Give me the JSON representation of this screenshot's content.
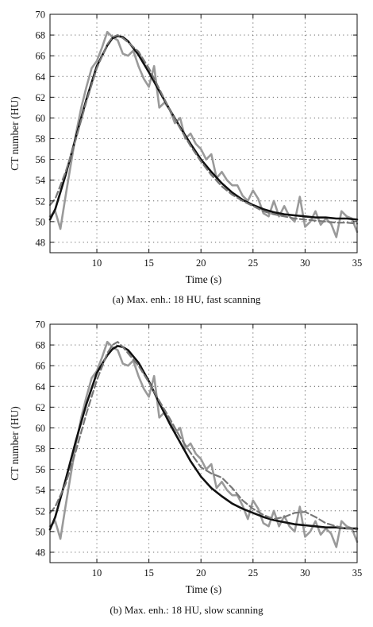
{
  "colors": {
    "noisy": "#9a9a9a",
    "fit": "#111111",
    "dashed": "#777777",
    "grid": "#555555"
  },
  "chart_data": [
    {
      "type": "line",
      "caption": "(a)  Max. enh.: 18 HU, fast scanning",
      "xlabel": "Time (s)",
      "ylabel": "CT number (HU)",
      "xlim": [
        5.5,
        35
      ],
      "ylim": [
        47,
        70
      ],
      "xticks": [
        10,
        15,
        20,
        25,
        30,
        35
      ],
      "yticks": [
        48,
        50,
        52,
        54,
        56,
        58,
        60,
        62,
        64,
        66,
        68,
        70
      ],
      "grid": true,
      "series": [
        {
          "style": "noisy",
          "x": [
            5.5,
            6,
            6.5,
            7,
            7.5,
            8,
            8.5,
            9,
            9.5,
            10,
            10.5,
            11,
            11.5,
            12,
            12.5,
            13,
            13.5,
            14,
            14.5,
            15,
            15.5,
            16,
            16.5,
            17,
            17.5,
            18,
            18.5,
            19,
            19.5,
            20,
            20.5,
            21,
            21.5,
            22,
            22.5,
            23,
            23.5,
            24,
            24.5,
            25,
            25.5,
            26,
            26.5,
            27,
            27.5,
            28,
            28.5,
            29,
            29.5,
            30,
            30.5,
            31,
            31.5,
            32,
            32.5,
            33,
            33.5,
            34,
            34.5,
            35
          ],
          "y": [
            50.5,
            51.0,
            49.3,
            52.5,
            55.5,
            58.5,
            61.0,
            63.0,
            64.8,
            65.5,
            66.8,
            68.3,
            67.8,
            67.5,
            66.2,
            66.0,
            66.5,
            65.0,
            63.8,
            63.0,
            65.0,
            61.0,
            61.5,
            60.8,
            59.5,
            60.0,
            58.0,
            58.5,
            57.5,
            57.0,
            56.0,
            56.5,
            54.2,
            54.8,
            54.0,
            53.5,
            53.5,
            52.5,
            52.0,
            53.0,
            52.2,
            50.8,
            50.5,
            52.0,
            50.5,
            51.5,
            50.5,
            50.0,
            52.4,
            49.5,
            50.0,
            51.0,
            49.7,
            50.3,
            49.8,
            48.5,
            51.0,
            50.5,
            50.3,
            49.0
          ]
        },
        {
          "style": "fit",
          "x": [
            5.5,
            6,
            7,
            8,
            9,
            10,
            11,
            11.5,
            12,
            12.5,
            13,
            14,
            15,
            16,
            17,
            18,
            19,
            20,
            21,
            22,
            23,
            24,
            25,
            26,
            27,
            28,
            29,
            30,
            31,
            32,
            33,
            34,
            35
          ],
          "y": [
            50.2,
            51.2,
            54.5,
            58.2,
            61.8,
            65.0,
            67.0,
            67.7,
            67.9,
            67.8,
            67.4,
            66.1,
            64.4,
            62.6,
            60.8,
            59.1,
            57.5,
            56.0,
            54.8,
            53.7,
            52.8,
            52.1,
            51.6,
            51.2,
            50.9,
            50.7,
            50.6,
            50.5,
            50.4,
            50.4,
            50.3,
            50.3,
            50.2
          ]
        },
        {
          "style": "dashed",
          "x": [
            5.5,
            6,
            7,
            8,
            9,
            10,
            11,
            11.5,
            12,
            12.5,
            13,
            14,
            15,
            16,
            17,
            18,
            19,
            20,
            21,
            22,
            23,
            24,
            25,
            26,
            27,
            28,
            29,
            30,
            31,
            32,
            33,
            34,
            35
          ],
          "y": [
            51.6,
            52.2,
            54.8,
            58.0,
            61.6,
            64.8,
            67.1,
            67.8,
            68.0,
            67.7,
            67.3,
            66.4,
            64.8,
            62.8,
            60.8,
            59.0,
            57.3,
            55.8,
            54.5,
            53.4,
            52.6,
            52.0,
            51.5,
            51.0,
            50.7,
            50.5,
            50.3,
            50.2,
            50.1,
            50.0,
            49.9,
            49.9,
            49.8
          ]
        }
      ]
    },
    {
      "type": "line",
      "caption": "(b)  Max. enh.: 18 HU, slow scanning",
      "xlabel": "Time (s)",
      "ylabel": "CT number (HU)",
      "xlim": [
        5.5,
        35
      ],
      "ylim": [
        47,
        70
      ],
      "xticks": [
        10,
        15,
        20,
        25,
        30,
        35
      ],
      "yticks": [
        48,
        50,
        52,
        54,
        56,
        58,
        60,
        62,
        64,
        66,
        68,
        70
      ],
      "grid": true,
      "series": [
        {
          "style": "noisy",
          "x": [
            5.5,
            6,
            6.5,
            7,
            7.5,
            8,
            8.5,
            9,
            9.5,
            10,
            10.5,
            11,
            11.5,
            12,
            12.5,
            13,
            13.5,
            14,
            14.5,
            15,
            15.5,
            16,
            16.5,
            17,
            17.5,
            18,
            18.5,
            19,
            19.5,
            20,
            20.5,
            21,
            21.5,
            22,
            22.5,
            23,
            23.5,
            24,
            24.5,
            25,
            25.5,
            26,
            26.5,
            27,
            27.5,
            28,
            28.5,
            29,
            29.5,
            30,
            30.5,
            31,
            31.5,
            32,
            32.5,
            33,
            33.5,
            34,
            34.5,
            35
          ],
          "y": [
            50.5,
            51.0,
            49.3,
            52.5,
            55.5,
            58.5,
            61.0,
            63.0,
            64.8,
            65.5,
            66.8,
            68.3,
            67.8,
            67.5,
            66.2,
            66.0,
            66.5,
            65.0,
            63.8,
            63.0,
            65.0,
            61.0,
            61.5,
            60.8,
            59.5,
            60.0,
            58.0,
            58.5,
            57.5,
            57.0,
            56.0,
            56.5,
            54.2,
            54.8,
            54.0,
            53.5,
            53.5,
            52.5,
            51.2,
            53.0,
            52.2,
            50.8,
            50.5,
            52.0,
            50.5,
            51.5,
            50.5,
            50.0,
            52.4,
            49.5,
            50.0,
            51.0,
            49.7,
            50.3,
            49.8,
            48.5,
            51.0,
            50.5,
            50.3,
            49.0
          ]
        },
        {
          "style": "fit",
          "x": [
            5.5,
            6,
            7,
            8,
            9,
            10,
            11,
            11.5,
            12,
            12.5,
            13,
            14,
            15,
            16,
            17,
            18,
            19,
            20,
            21,
            22,
            23,
            24,
            25,
            26,
            27,
            28,
            29,
            30,
            31,
            32,
            33,
            34,
            35
          ],
          "y": [
            50.2,
            51.4,
            55.0,
            58.8,
            62.3,
            65.3,
            67.0,
            67.6,
            67.9,
            67.8,
            67.5,
            66.3,
            64.5,
            62.4,
            60.4,
            58.6,
            56.8,
            55.3,
            54.2,
            53.4,
            52.7,
            52.2,
            51.8,
            51.4,
            51.1,
            50.9,
            50.7,
            50.6,
            50.5,
            50.4,
            50.4,
            50.3,
            50.3
          ]
        },
        {
          "style": "dashed",
          "x": [
            5.5,
            6,
            7,
            8,
            9,
            10,
            11,
            11.5,
            12,
            12.5,
            13,
            14,
            15,
            16,
            17,
            18,
            19,
            20,
            21,
            22,
            23,
            24,
            25,
            26,
            27,
            28,
            29,
            30,
            31,
            32,
            33,
            34,
            35
          ],
          "y": [
            51.8,
            52.4,
            54.6,
            57.8,
            61.4,
            64.6,
            67.2,
            68.0,
            68.3,
            67.8,
            67.2,
            66.0,
            64.4,
            62.6,
            60.9,
            59.1,
            57.6,
            56.2,
            55.6,
            55.2,
            54.2,
            53.0,
            52.2,
            51.6,
            51.2,
            51.4,
            51.8,
            51.9,
            51.4,
            50.8,
            50.5,
            50.3,
            50.2
          ]
        }
      ]
    }
  ]
}
